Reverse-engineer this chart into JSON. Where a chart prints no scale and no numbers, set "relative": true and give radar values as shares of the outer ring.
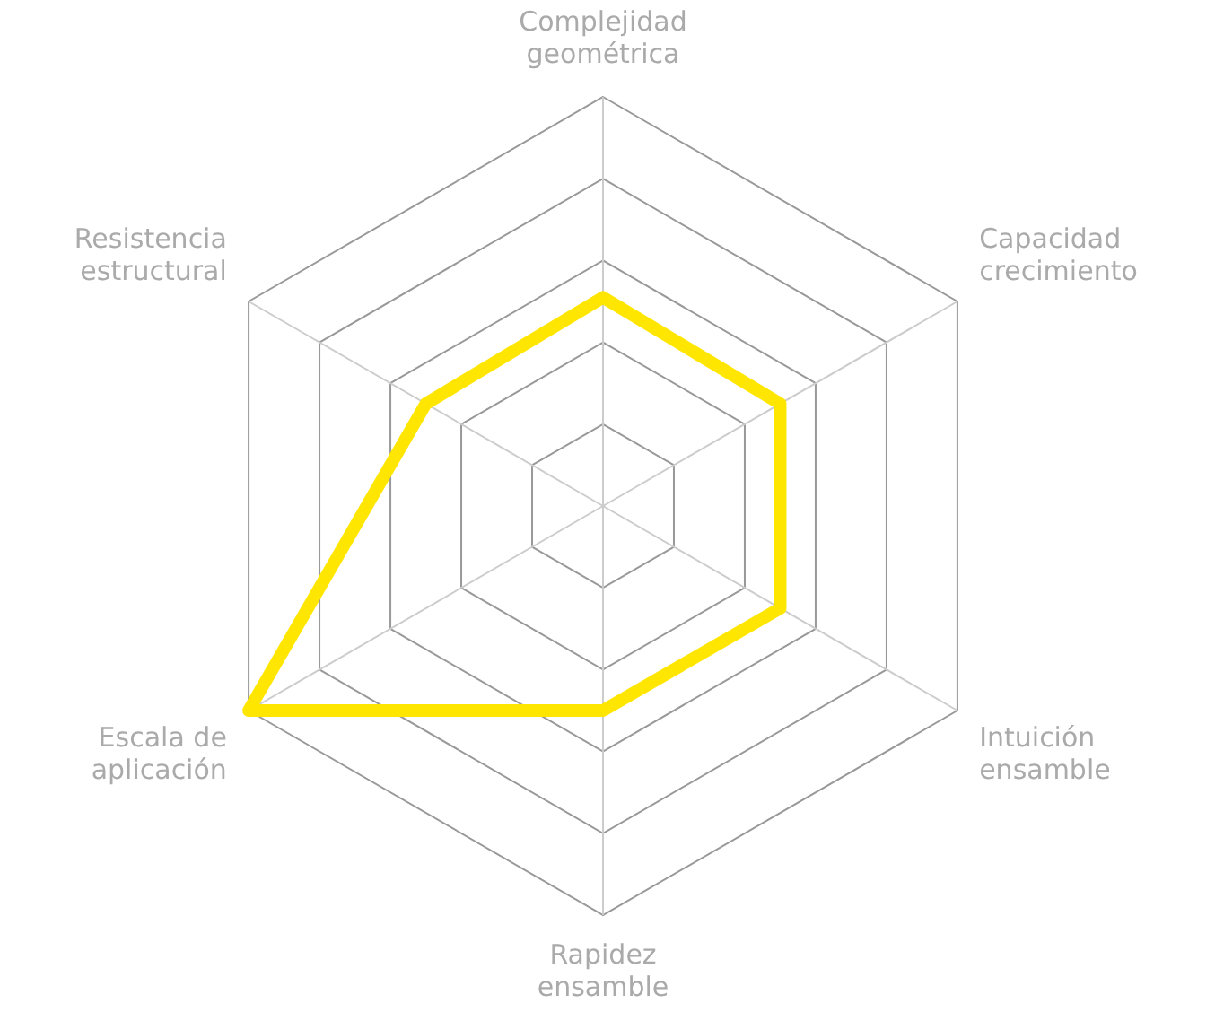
{
  "chart_data": {
    "type": "radar",
    "relative": true,
    "categories": [
      "Complejidad geométrica",
      "Capacidad crecimiento",
      "Intuición ensamble",
      "Rapidez ensamble",
      "Escala de aplicación",
      "Resistencia estructural"
    ],
    "series": [
      {
        "color": "#ffe600",
        "values": [
          0.51,
          0.5,
          0.5,
          0.5,
          1.0,
          0.5
        ]
      }
    ],
    "grid": true,
    "legend": false,
    "marker": "none",
    "line_style": "solid"
  }
}
